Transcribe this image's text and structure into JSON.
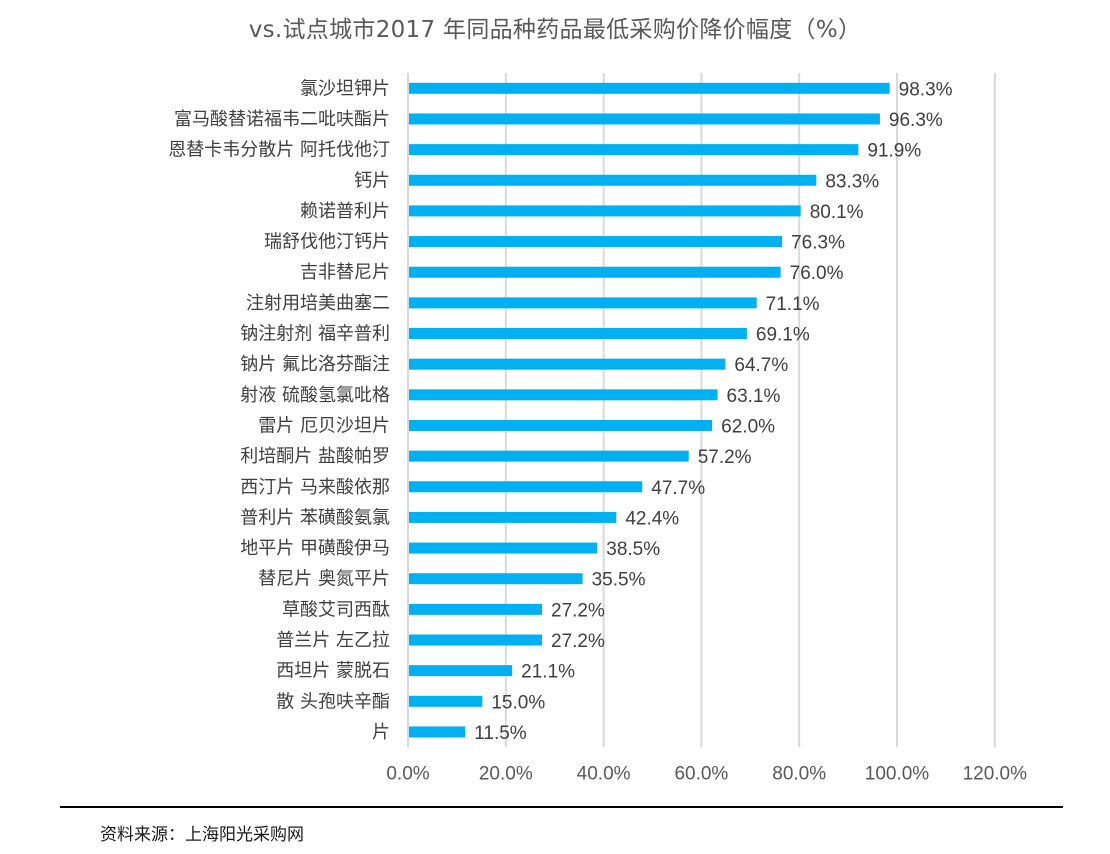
{
  "chart_data": {
    "type": "bar",
    "orientation": "horizontal",
    "title": "vs.试点城市2017 年同品种药品最低采购价降价幅度（%）",
    "xlabel": "",
    "ylabel": "",
    "xlim": [
      0,
      120
    ],
    "x_ticks": [
      0,
      20,
      40,
      60,
      80,
      100,
      120
    ],
    "x_tick_labels": [
      "0.0%",
      "20.0%",
      "40.0%",
      "60.0%",
      "80.0%",
      "100.0%",
      "120.0%"
    ],
    "grid": "vertical",
    "legend": "none",
    "bar_color": "#00B0F0",
    "categories": [
      "氯沙坦钾片",
      "富马酸替诺福韦二吡呋酯片",
      "恩替卡韦分散片 阿托伐他汀",
      "钙片",
      "赖诺普利片",
      "瑞舒伐他汀钙片",
      "吉非替尼片",
      "注射用培美曲塞二",
      "钠注射剂 福辛普利",
      "钠片 氟比洛芬酯注",
      "射液 硫酸氢氯吡格",
      "雷片 厄贝沙坦片",
      "利培酮片 盐酸帕罗",
      "西汀片 马来酸依那",
      "普利片 苯磺酸氨氯",
      "地平片 甲磺酸伊马",
      "替尼片 奥氮平片",
      "草酸艾司西酞",
      "普兰片 左乙拉",
      "西坦片 蒙脱石",
      "散 头孢呋辛酯",
      "片"
    ],
    "values": [
      98.3,
      96.3,
      91.9,
      83.3,
      80.1,
      76.3,
      76.0,
      71.1,
      69.1,
      64.7,
      63.1,
      62.0,
      57.2,
      47.7,
      42.4,
      38.5,
      35.5,
      27.2,
      27.2,
      21.1,
      15.0,
      11.5
    ],
    "value_labels": [
      "98.3%",
      "96.3%",
      "91.9%",
      "83.3%",
      "80.1%",
      "76.3%",
      "76.0%",
      "71.1%",
      "69.1%",
      "64.7%",
      "63.1%",
      "62.0%",
      "57.2%",
      "47.7%",
      "42.4%",
      "38.5%",
      "35.5%",
      "27.2%",
      "27.2%",
      "21.1%",
      "15.0%",
      "11.5%"
    ]
  },
  "footer": {
    "source": "资料来源：上海阳光采购网"
  }
}
